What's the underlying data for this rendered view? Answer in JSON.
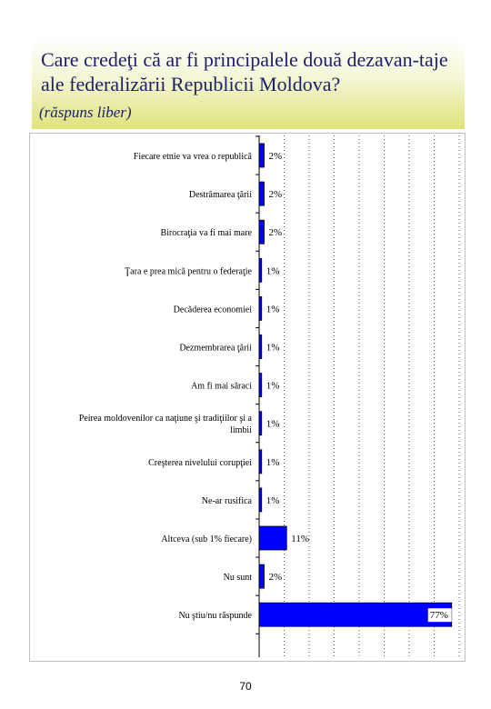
{
  "header": {
    "title": "Care credeţi că ar fi principalele două dezavan-taje ale federalizării Republicii Moldova?",
    "subtitle": "(răspuns liber)"
  },
  "page_number": "70",
  "colors": {
    "bar": "#0000ff",
    "bar_outline": "#000000",
    "header_gradient_end": "#dfe37a",
    "title_text": "#1b1f6e"
  },
  "chart_data": {
    "type": "bar",
    "orientation": "horizontal",
    "categories": [
      [
        "Fiecare etnie va vrea o republică"
      ],
      [
        "Destrămarea ţării"
      ],
      [
        "Birocraţia va fi mai mare"
      ],
      [
        "Ţara e prea mică pentru o federaţie"
      ],
      [
        "Decăderea economiei"
      ],
      [
        "Dezmembrarea ţării"
      ],
      [
        "Am fi mai săraci"
      ],
      [
        "Peirea moldovenilor ca naţiune şi tradiţiilor şi a",
        "limbii"
      ],
      [
        "Creşterea nivelului corupţiei"
      ],
      [
        "Ne-ar rusifica"
      ],
      [
        "Altceva (sub 1% fiecare)"
      ],
      [
        "Nu sunt"
      ],
      [
        "Nu ştiu/nu răspunde"
      ]
    ],
    "values": [
      2,
      2,
      2,
      1,
      1,
      1,
      1,
      1,
      1,
      1,
      11,
      2,
      77
    ],
    "value_labels": [
      "2%",
      "2%",
      "2%",
      "1%",
      "1%",
      "1%",
      "1%",
      "1%",
      "1%",
      "1%",
      "11%",
      "2%",
      "77%"
    ],
    "xlim": [
      0,
      80
    ],
    "grid": "vertical dotted",
    "legend": "none"
  }
}
